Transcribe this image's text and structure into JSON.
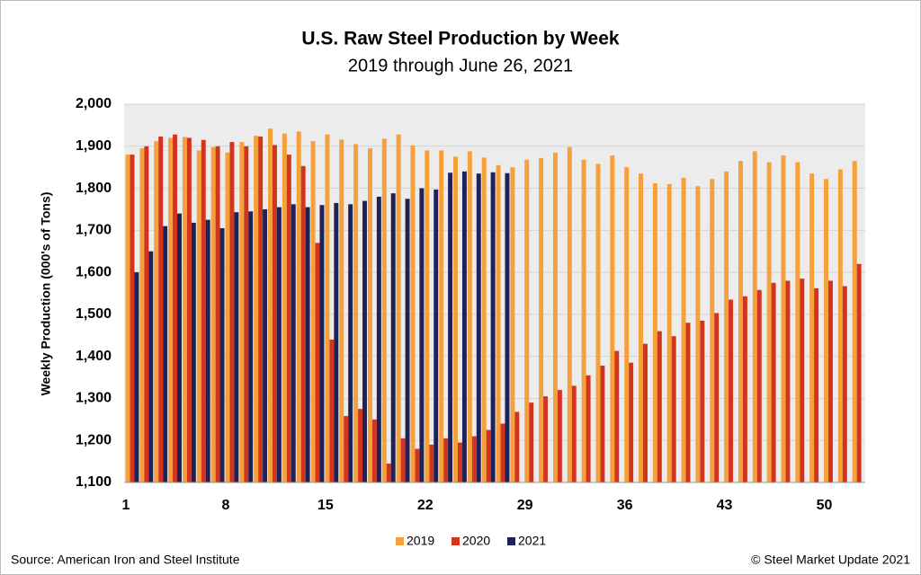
{
  "chart_data": {
    "type": "bar",
    "title": "U.S. Raw Steel Production by Week",
    "subtitle": "2019 through June 26, 2021",
    "y_label": "Weekly Production (000's of Tons)",
    "source": "Source: American Iron and Steel Institute",
    "copyright": "© Steel Market Update 2021",
    "categories": [
      "1",
      null,
      null,
      null,
      null,
      null,
      null,
      "8",
      null,
      null,
      null,
      null,
      null,
      null,
      "15",
      null,
      null,
      null,
      null,
      null,
      null,
      "22",
      null,
      null,
      null,
      null,
      null,
      null,
      "29",
      null,
      null,
      null,
      null,
      null,
      null,
      "36",
      null,
      null,
      null,
      null,
      null,
      null,
      "43",
      null,
      null,
      null,
      null,
      null,
      null,
      "50",
      null,
      null
    ],
    "series": [
      {
        "name": "2019",
        "color": "#f5a03a",
        "values": [
          1880,
          1895,
          1912,
          1920,
          1922,
          1890,
          1898,
          1885,
          1910,
          1925,
          1942,
          1930,
          1935,
          1912,
          1928,
          1916,
          1905,
          1895,
          1918,
          1928,
          1902,
          1890,
          1890,
          1875,
          1888,
          1873,
          1855,
          1850,
          1868,
          1872,
          1885,
          1898,
          1868,
          1858,
          1878,
          1850,
          1835,
          1812,
          1810,
          1825,
          1805,
          1822,
          1840,
          1865,
          1888,
          1862,
          1878,
          1862,
          1835,
          1822,
          1845,
          1865
        ]
      },
      {
        "name": "2020",
        "color": "#d2341e",
        "values": [
          1880,
          1900,
          1923,
          1928,
          1920,
          1915,
          1900,
          1910,
          1900,
          1923,
          1903,
          1880,
          1853,
          1670,
          1440,
          1258,
          1275,
          1250,
          1145,
          1205,
          1180,
          1190,
          1205,
          1195,
          1210,
          1225,
          1240,
          1268,
          1290,
          1305,
          1320,
          1330,
          1355,
          1378,
          1413,
          1385,
          1430,
          1460,
          1448,
          1480,
          1485,
          1503,
          1535,
          1543,
          1558,
          1575,
          1580,
          1585,
          1562,
          1580,
          1567,
          1620
        ]
      },
      {
        "name": "2021",
        "color": "#1e2256",
        "values": [
          1600,
          1650,
          1710,
          1740,
          1718,
          1725,
          1705,
          1743,
          1745,
          1750,
          1755,
          1762,
          1755,
          1760,
          1765,
          1762,
          1770,
          1780,
          1788,
          1775,
          1800,
          1797,
          1837,
          1840,
          1835,
          1838,
          1836,
          null,
          null,
          null,
          null,
          null,
          null,
          null,
          null,
          null,
          null,
          null,
          null,
          null,
          null,
          null,
          null,
          null,
          null,
          null,
          null,
          null,
          null,
          null,
          null,
          null
        ]
      }
    ],
    "ylim": [
      1100,
      2000
    ],
    "yticks": [
      {
        "value": 1100,
        "label": "1,100"
      },
      {
        "value": 1200,
        "label": "1,200"
      },
      {
        "value": 1300,
        "label": "1,300"
      },
      {
        "value": 1400,
        "label": "1,400"
      },
      {
        "value": 1500,
        "label": "1,500"
      },
      {
        "value": 1600,
        "label": "1,600"
      },
      {
        "value": 1700,
        "label": "1,700"
      },
      {
        "value": 1800,
        "label": "1,800"
      },
      {
        "value": 1900,
        "label": "1,900"
      },
      {
        "value": 2000,
        "label": "2,000"
      }
    ],
    "grid": true
  }
}
